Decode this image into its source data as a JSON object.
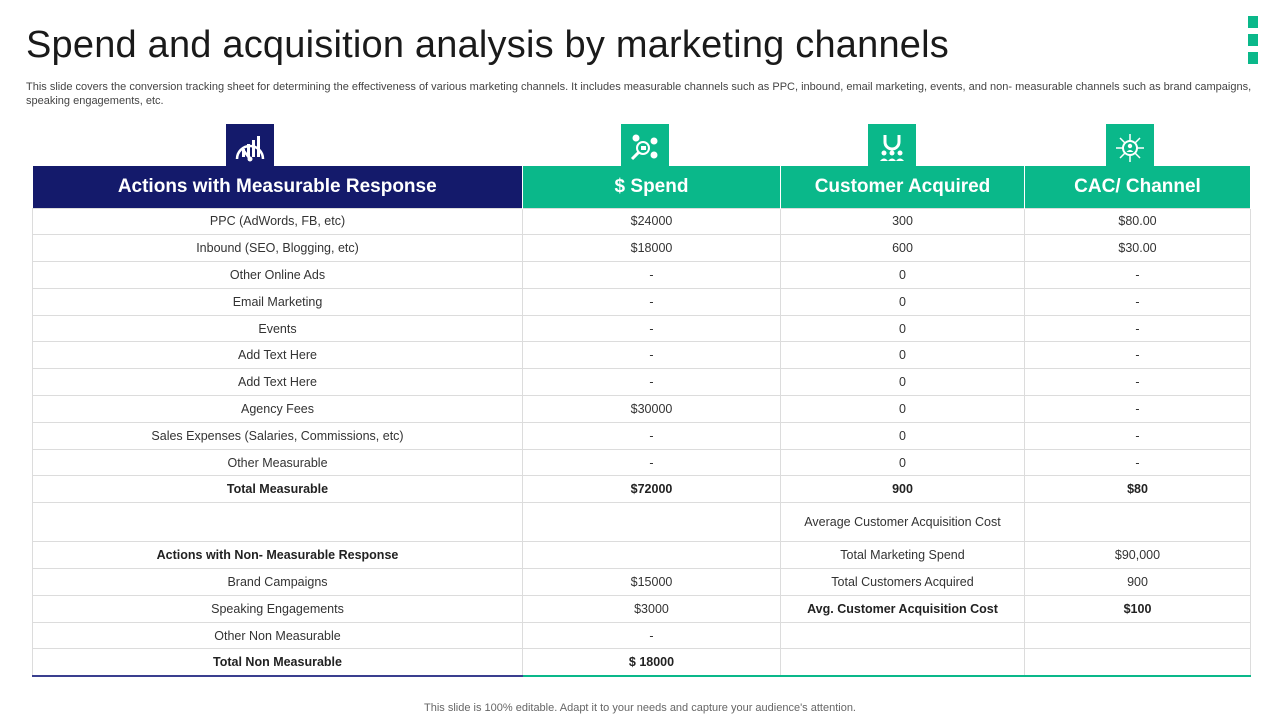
{
  "title": "Spend and acquisition analysis by marketing channels",
  "subtitle": "This slide covers the conversion tracking sheet for determining the effectiveness of various marketing channels. It includes measurable channels such as PPC, inbound, email marketing, events, and non- measurable channels such as brand campaigns, speaking engagements, etc.",
  "accent_colors": {
    "navy": "#141a6b",
    "green": "#0ab88a"
  },
  "icons": [
    "analytics-gauge-icon",
    "money-search-icon",
    "magnet-customers-icon",
    "network-user-icon"
  ],
  "table": {
    "headers": [
      "Actions with Measurable Response",
      "$ Spend",
      "Customer Acquired",
      "CAC/ Channel"
    ],
    "rows": [
      [
        "PPC (AdWords, FB, etc)",
        "$24000",
        "300",
        "$80.00"
      ],
      [
        "Inbound (SEO, Blogging, etc)",
        "$18000",
        "600",
        "$30.00"
      ],
      [
        "Other Online Ads",
        "-",
        "0",
        "-"
      ],
      [
        "Email Marketing",
        "-",
        "0",
        "-"
      ],
      [
        "Events",
        "-",
        "0",
        "-"
      ],
      [
        "Add Text Here",
        "-",
        "0",
        "-"
      ],
      [
        "Add Text Here",
        "-",
        "0",
        "-"
      ],
      [
        "Agency Fees",
        "$30000",
        "0",
        "-"
      ],
      [
        "Sales Expenses (Salaries, Commissions, etc)",
        "-",
        "0",
        "-"
      ],
      [
        "Other Measurable",
        "-",
        "0",
        "-"
      ],
      [
        "Total Measurable",
        "$72000",
        "900",
        "$80"
      ],
      [
        "",
        "",
        "Average  Customer  Acquisition Cost",
        ""
      ],
      [
        "Actions  with Non- Measurable Response",
        "",
        "Total Marketing Spend",
        "$90,000"
      ],
      [
        "Brand Campaigns",
        "$15000",
        "Total Customers Acquired",
        "900"
      ],
      [
        "Speaking Engagements",
        "$3000",
        "Avg.  Customer  Acquisition Cost",
        "$100"
      ],
      [
        "Other Non Measurable",
        "-",
        "",
        ""
      ],
      [
        "Total Non Measurable",
        "$ 18000",
        "",
        ""
      ]
    ]
  },
  "footer": "This slide is 100% editable. Adapt it to your needs and capture your audience's attention."
}
